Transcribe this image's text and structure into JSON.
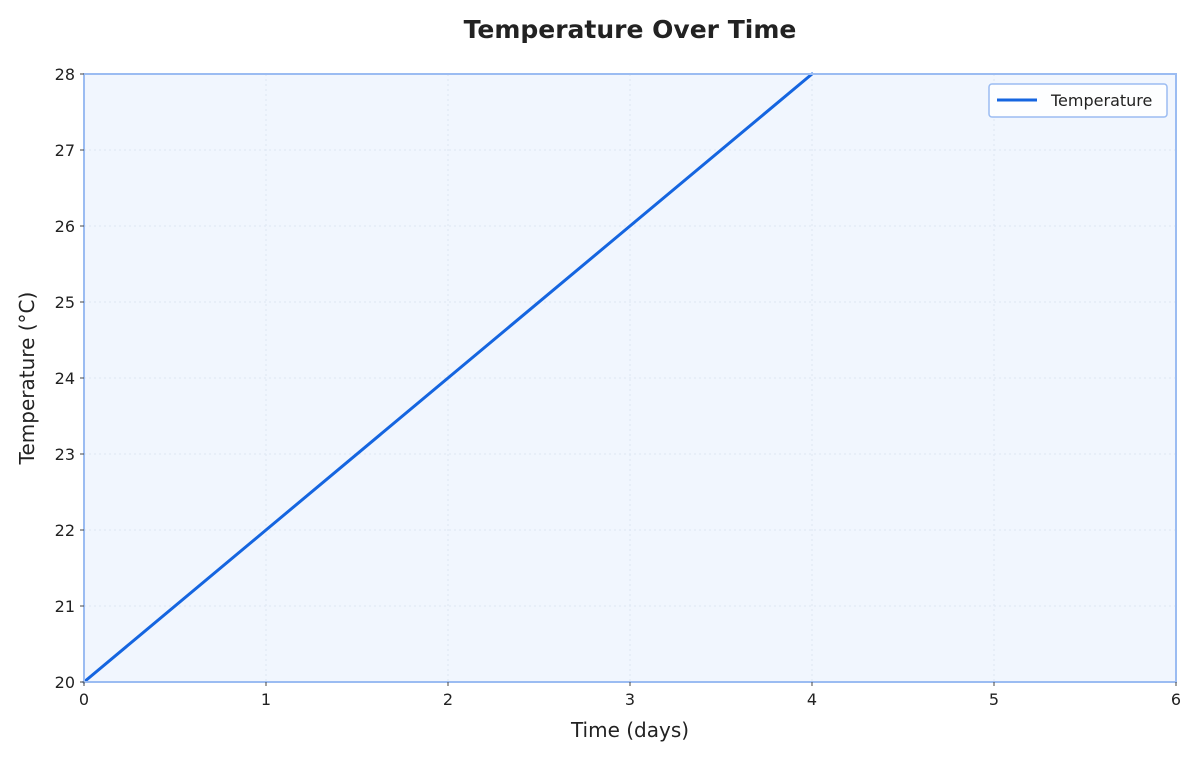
{
  "chart_data": {
    "type": "line",
    "title": "Temperature Over Time",
    "xlabel": "Time (days)",
    "ylabel": "Temperature (°C)",
    "xlim": [
      0,
      6
    ],
    "ylim": [
      20,
      28
    ],
    "x_ticks": [
      "0",
      "1",
      "2",
      "3",
      "4",
      "5",
      "6"
    ],
    "y_ticks": [
      "20",
      "21",
      "22",
      "23",
      "24",
      "25",
      "26",
      "27",
      "28"
    ],
    "grid": true,
    "legend": "top-right",
    "series": [
      {
        "name": "Temperature",
        "x": [
          0,
          1,
          2,
          3,
          4
        ],
        "y": [
          20,
          22,
          24,
          26,
          28
        ],
        "color": "#1565e0"
      }
    ]
  },
  "colors": {
    "plot_background": "#f1f6fe",
    "plot_border": "#9bbcf2",
    "grid": "#dde6f3",
    "line": "#1565e0"
  }
}
